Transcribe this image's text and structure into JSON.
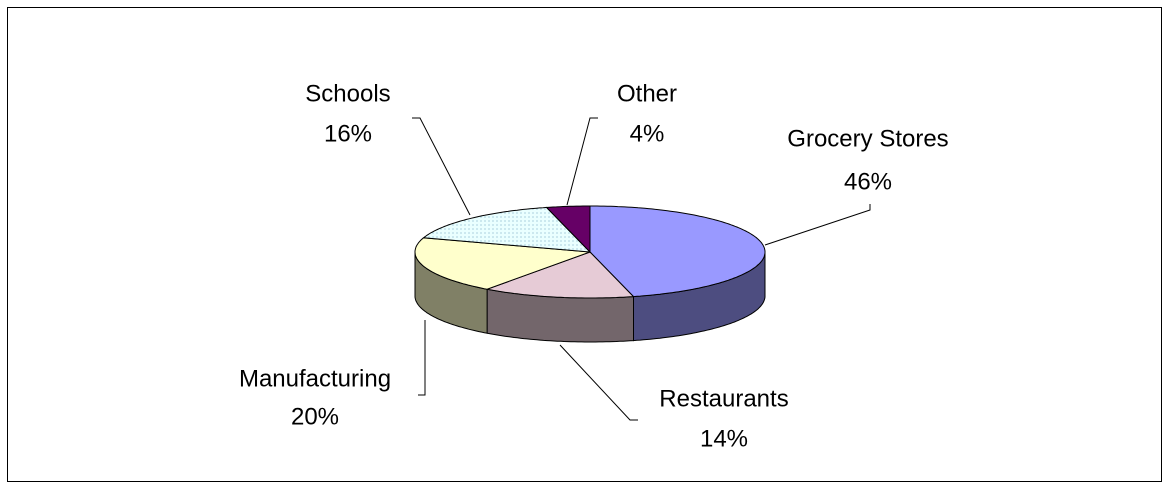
{
  "chart_data": {
    "type": "pie3d",
    "categories": [
      "Grocery Stores",
      "Restaurants",
      "Manufacturing",
      "Schools",
      "Other"
    ],
    "values": [
      46,
      14,
      20,
      16,
      4
    ],
    "value_labels": [
      "46%",
      "14%",
      "20%",
      "16%",
      "4%"
    ],
    "colors": [
      "#9999ff",
      "#e6cbd6",
      "#ffffcc",
      "#eaffff",
      "#660066"
    ]
  }
}
